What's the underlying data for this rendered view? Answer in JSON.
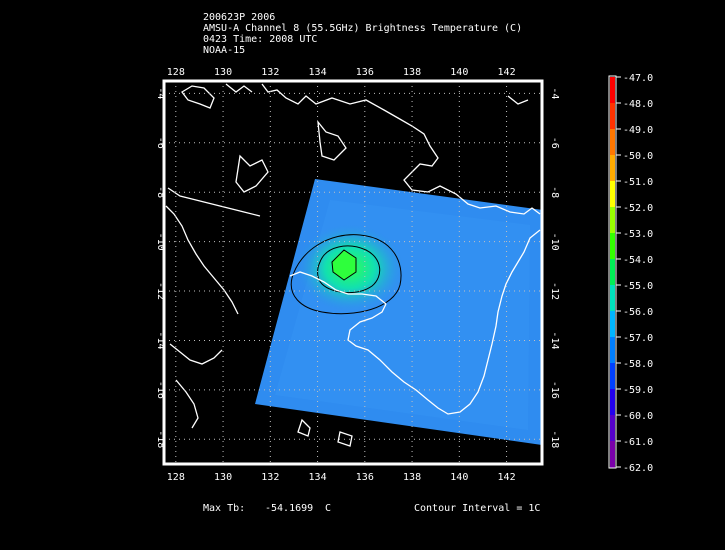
{
  "header": {
    "line1": "200623P 2006",
    "line2": "AMSU-A Channel 8 (55.5GHz) Brightness Temperature (C)",
    "line3": "0423 Time: 2008 UTC",
    "line4": "NOAA-15"
  },
  "map": {
    "lon_ticks": [
      "128",
      "130",
      "132",
      "134",
      "136",
      "138",
      "140",
      "142"
    ],
    "lat_ticks": [
      "-4",
      "-6",
      "-8",
      "-10",
      "-12",
      "-14",
      "-16",
      "-18"
    ],
    "lon_range": [
      127.5,
      143.5
    ],
    "lat_range": [
      -3.5,
      -19.0
    ],
    "swath_color": "#2f8cf0",
    "center_color": "#33ff66"
  },
  "colorbar": {
    "labels": [
      "-47.0",
      "-48.0",
      "-49.0",
      "-50.0",
      "-51.0",
      "-52.0",
      "-53.0",
      "-54.0",
      "-55.0",
      "-56.0",
      "-57.0",
      "-58.0",
      "-59.0",
      "-60.0",
      "-61.0",
      "-62.0"
    ],
    "colors": [
      "#ff0000",
      "#ff3300",
      "#ff7700",
      "#ffaa00",
      "#ffff00",
      "#99ff00",
      "#33ff00",
      "#00ee55",
      "#00e0bb",
      "#00b6ff",
      "#007fff",
      "#0040ff",
      "#2200ee",
      "#5500cc",
      "#7a00aa",
      "#990077"
    ]
  },
  "footer": {
    "max_label": "Max Tb:",
    "max_value": "-54.1699",
    "max_unit": "C",
    "contour": "Contour Interval = 1C"
  }
}
